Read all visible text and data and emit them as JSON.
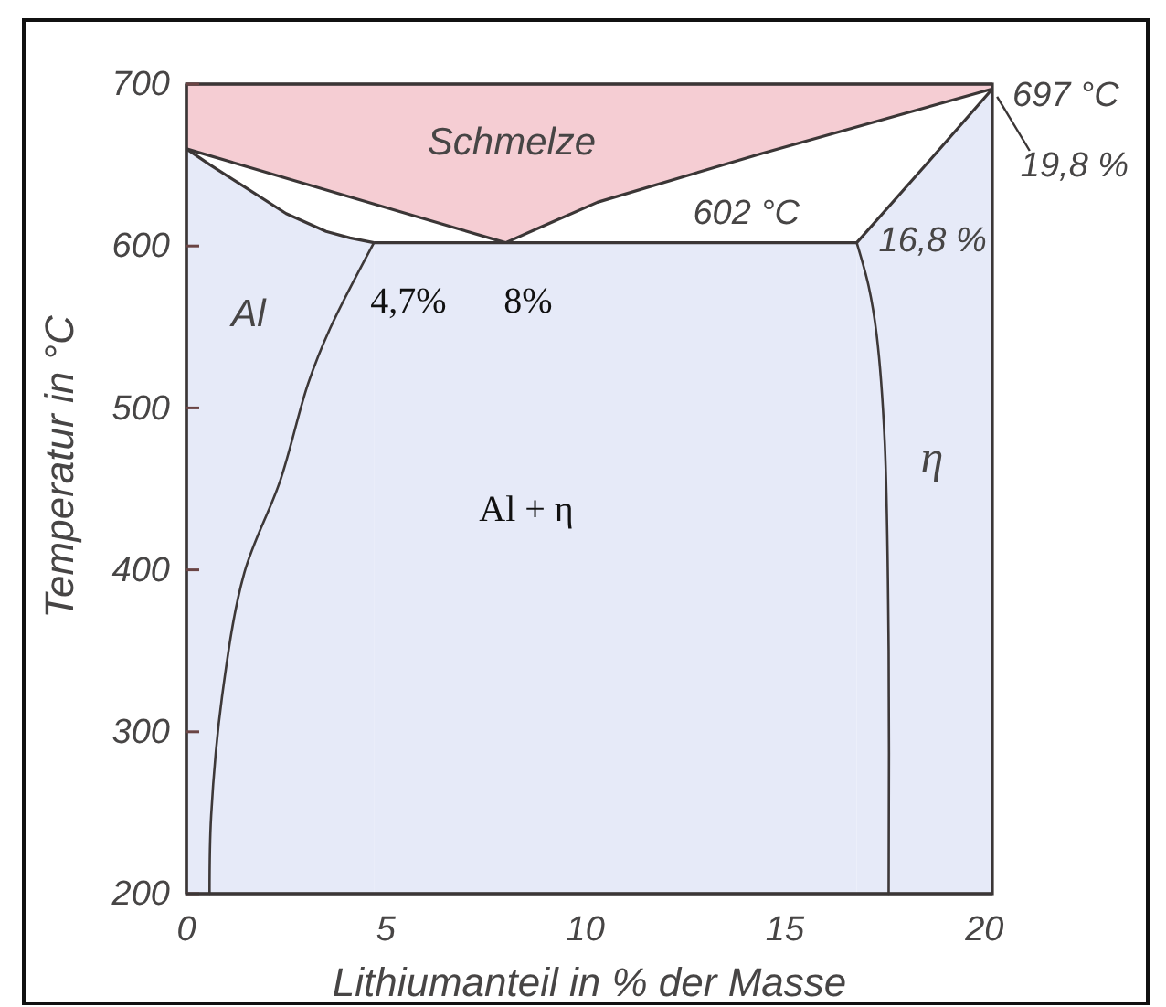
{
  "chart_data": {
    "type": "area",
    "xlabel": "Lithiumanteil in % der Masse",
    "ylabel": "Temperatur in °C",
    "xlim": [
      0,
      20.2
    ],
    "ylim": [
      200,
      700
    ],
    "xticks": [
      0,
      5,
      10,
      15,
      20
    ],
    "yticks": [
      200,
      300,
      400,
      500,
      600,
      700
    ],
    "series": [
      {
        "color": "#f5cdd3",
        "x": [
          0,
          20.2
        ],
        "values": [
          700,
          700
        ]
      },
      {
        "color": "#ffffff",
        "x": [
          0,
          8
        ],
        "values": [
          660,
          602
        ]
      },
      {
        "color": "#ffffff",
        "x": [
          8,
          9,
          10.3,
          14.4,
          20.2
        ],
        "values": [
          602,
          613,
          627,
          657,
          697
        ]
      },
      {
        "color": "#e6eaf8",
        "x": [
          0,
          0.6,
          1.3,
          2.5,
          3.5,
          4.1,
          4.7
        ],
        "values": [
          660,
          650,
          639,
          620,
          609,
          605,
          602
        ]
      },
      {
        "color": "#e6eaf8",
        "x": [
          4.7,
          16.8
        ],
        "values": [
          602,
          602
        ]
      },
      {
        "color": "#e6eaf8",
        "x": [
          16.8,
          18.6,
          20.2
        ],
        "values": [
          602,
          652,
          697
        ]
      },
      {
        "type": "line",
        "color": "#3d3838",
        "x": [
          4.7,
          3.6,
          3.05,
          2.35,
          1.45,
          0.9,
          0.62,
          0.58
        ],
        "values": [
          602,
          549,
          515,
          455,
          398,
          323,
          248,
          200
        ]
      },
      {
        "type": "line",
        "color": "#3d3838",
        "x": [
          16.8,
          17.1,
          17.3,
          17.5,
          17.6,
          17.6
        ],
        "values": [
          602,
          575,
          545,
          480,
          350,
          200
        ]
      }
    ],
    "annotations": [
      "Schmelze",
      {
        "text": "602 °C",
        "x": 14.4,
        "y": 602
      },
      {
        "text": "697 °C",
        "x": 20.2,
        "y": 697
      },
      "19,8 %",
      {
        "text": "16,8 %",
        "x": 16.8,
        "y": 602
      },
      "Al",
      "η",
      {
        "text": "4,7%",
        "x": 4.7,
        "y": 602
      },
      {
        "text": "8%",
        "x": 8,
        "y": 602
      },
      "Al + η"
    ]
  }
}
